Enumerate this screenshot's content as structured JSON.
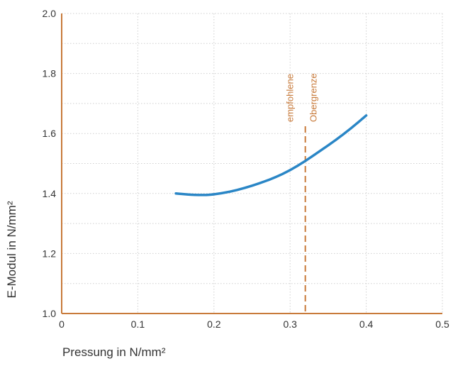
{
  "chart_data": {
    "type": "line",
    "xlabel": "Pressung in N/mm²",
    "ylabel": "E-Modul in N/mm²",
    "xlim": [
      0,
      0.5
    ],
    "ylim": [
      1.0,
      2.0
    ],
    "x_ticks": [
      0,
      0.1,
      0.2,
      0.3,
      0.4,
      0.5
    ],
    "x_tick_labels": [
      "0",
      "0.1",
      "0.2",
      "0.3",
      "0.4",
      "0.5"
    ],
    "y_ticks": [
      1.0,
      1.2,
      1.4,
      1.6,
      1.8,
      2.0
    ],
    "y_tick_labels": [
      "1.0",
      "1.2",
      "1.4",
      "1.6",
      "1.8",
      "2.0"
    ],
    "grid": true,
    "series": [
      {
        "color": "#2a86c6",
        "x": [
          0.15,
          0.16,
          0.17,
          0.18,
          0.19,
          0.2,
          0.22,
          0.24,
          0.26,
          0.28,
          0.3,
          0.32,
          0.34,
          0.36,
          0.38,
          0.4
        ],
        "y": [
          1.4,
          1.398,
          1.396,
          1.395,
          1.395,
          1.397,
          1.405,
          1.418,
          1.434,
          1.453,
          1.477,
          1.508,
          1.543,
          1.578,
          1.617,
          1.66
        ]
      }
    ],
    "reference_line": {
      "x": 0.32,
      "color": "#c87a3a",
      "label_lines": [
        "empfohlene",
        "Obergrenze"
      ]
    }
  },
  "colors": {
    "axis": "#c87a3a",
    "grid": "#cfcfcf",
    "text": "#333333"
  }
}
